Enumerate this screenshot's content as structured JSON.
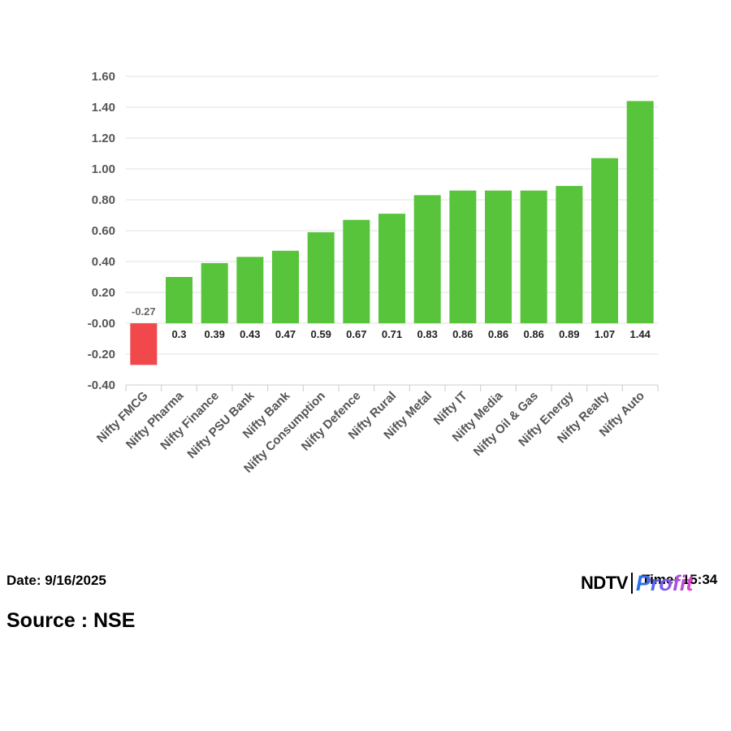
{
  "chart_data": {
    "type": "bar",
    "categories": [
      "Nifty FMCG",
      "Nifty Pharma",
      "Nifty Finance",
      "Nifty PSU Bank",
      "Nifty Bank",
      "Nifty Consumption",
      "Nifty Defence",
      "Nifty Rural",
      "Nifty Metal",
      "Nifty IT",
      "Nifty Media",
      "Nifty Oil & Gas",
      "Nifty Energy",
      "Nifty Realty",
      "Nifty Auto"
    ],
    "values": [
      -0.27,
      0.3,
      0.39,
      0.43,
      0.47,
      0.59,
      0.67,
      0.71,
      0.83,
      0.86,
      0.86,
      0.86,
      0.89,
      1.07,
      1.44
    ],
    "value_labels": [
      "-0.27",
      "0.3",
      "0.39",
      "0.43",
      "0.47",
      "0.59",
      "0.67",
      "0.71",
      "0.83",
      "0.86",
      "0.86",
      "0.86",
      "0.89",
      "1.07",
      "1.44"
    ],
    "yticks": [
      "1.60",
      "1.40",
      "1.20",
      "1.00",
      "0.80",
      "0.60",
      "0.40",
      "0.20",
      "-0.00",
      "-0.20",
      "-0.40"
    ],
    "ylim": [
      -0.4,
      1.6
    ],
    "grid": true,
    "legend": "none",
    "positive_color": "#57c43b",
    "negative_color": "#f0484b"
  },
  "footer": {
    "date": "Date: 9/16/2025",
    "time": "Time: 15:34",
    "source": "Source : NSE"
  },
  "logo": {
    "brand": "NDTV",
    "product": "Profit"
  }
}
